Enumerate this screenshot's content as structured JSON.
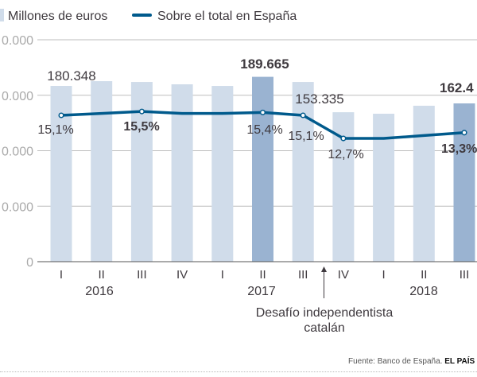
{
  "legend": {
    "bars": "Millones de euros",
    "line": "Sobre el total en España"
  },
  "colors": {
    "bar": "#d0dcea",
    "bar_highlight": "#9ab3d1",
    "line": "#005a8c",
    "grid": "#bdbdbd",
    "text": "#3f3a3f",
    "axis_label": "#aaaaaa"
  },
  "chart_data": {
    "type": "bar+line",
    "categories": [
      "I",
      "II",
      "III",
      "IV",
      "I",
      "II",
      "III",
      "IV",
      "I",
      "II",
      "III"
    ],
    "years": [
      {
        "label": "2016"
      },
      {
        "label": "2017"
      },
      {
        "label": "2018"
      }
    ],
    "y_tick_labels": [
      "0",
      "0.000",
      "0.000",
      "0.000",
      "0.000"
    ],
    "bars": {
      "name": "Millones de euros",
      "values": [
        180348,
        185200,
        184400,
        182000,
        180300,
        189665,
        184400,
        153335,
        151800,
        160000,
        162400
      ],
      "highlight": [
        5,
        10
      ]
    },
    "line": {
      "name": "Sobre el total en España",
      "unit": "%",
      "values": [
        15.1,
        15.3,
        15.5,
        15.3,
        15.3,
        15.4,
        15.1,
        12.7,
        12.7,
        13.0,
        13.3
      ]
    },
    "bar_labels": [
      {
        "index": 0,
        "text": "180.348",
        "bold": false
      },
      {
        "index": 5,
        "text": "189.665",
        "bold": true
      },
      {
        "index": 7,
        "text": "153.335",
        "bold": false
      },
      {
        "index": 10,
        "text": "162.4",
        "bold": true
      }
    ],
    "line_labels": [
      {
        "index": 0,
        "text": "15,1%",
        "bold": false
      },
      {
        "index": 2,
        "text": "15,5%",
        "bold": true
      },
      {
        "index": 5,
        "text": "15,4%",
        "bold": false
      },
      {
        "index": 6,
        "text": "15,1%",
        "bold": false
      },
      {
        "index": 7,
        "text": "12,7%",
        "bold": false
      },
      {
        "index": 10,
        "text": "13,3%",
        "bold": true
      }
    ],
    "annotation": {
      "lines": [
        "Desafío independentista",
        "catalán"
      ]
    }
  },
  "source": {
    "text": "Fuente: Banco de España.",
    "brand": "EL PAÍS"
  }
}
